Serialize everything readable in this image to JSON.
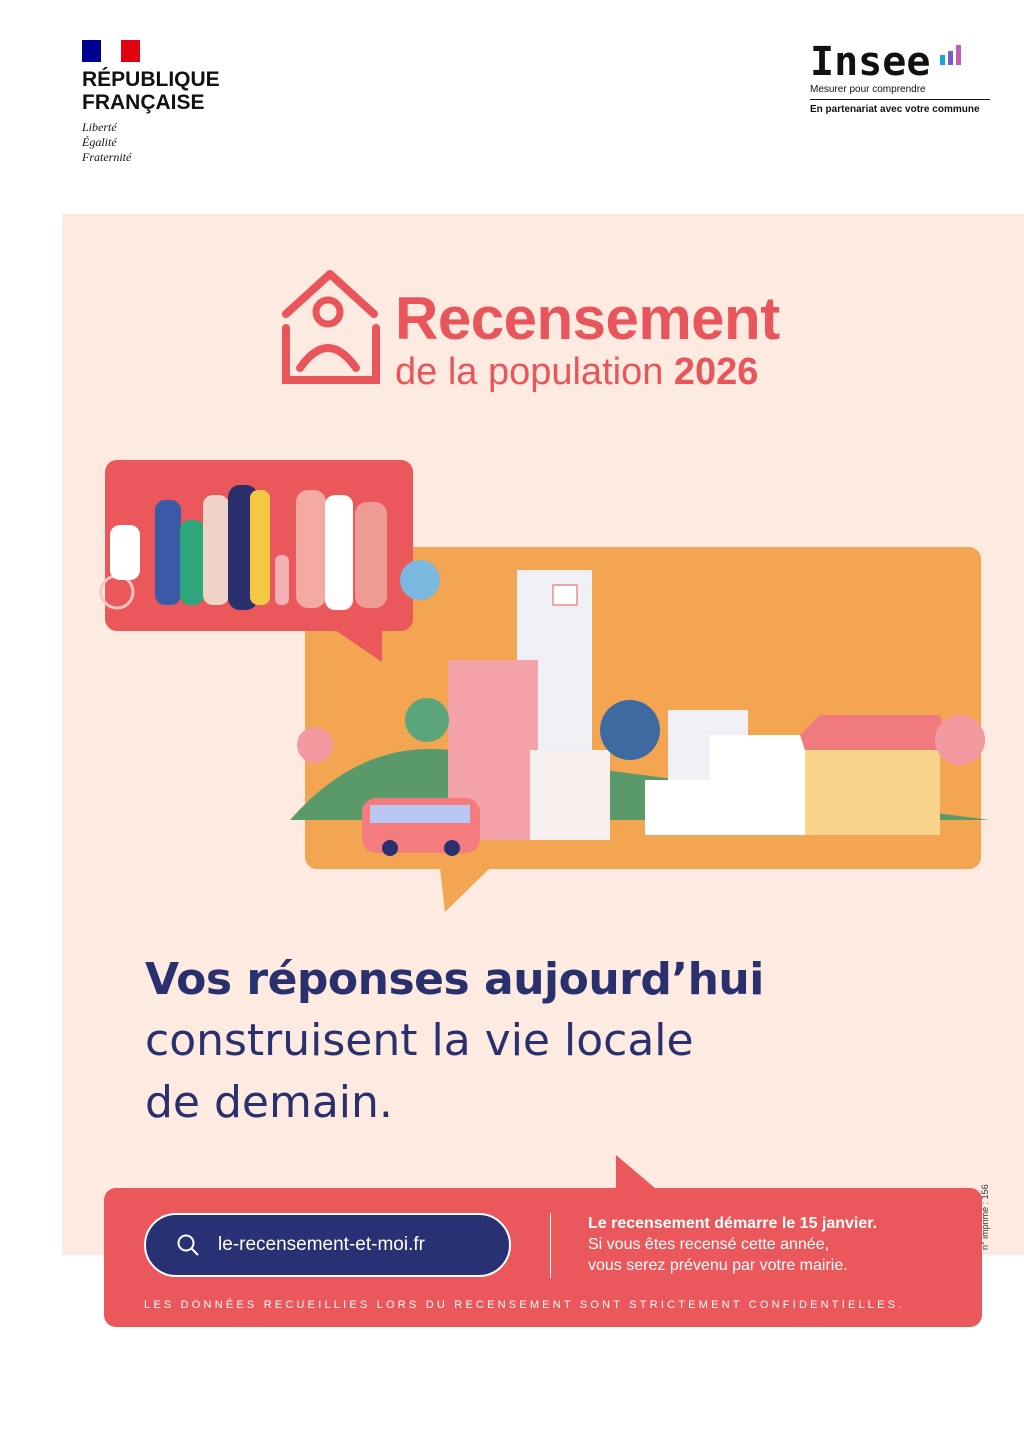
{
  "header": {
    "republique": {
      "line1": "RÉPUBLIQUE",
      "line2": "FRANÇAISE",
      "motto": [
        "Liberté",
        "Égalité",
        "Fraternité"
      ],
      "flag_colors": [
        "#000091",
        "#ffffff",
        "#e1000f"
      ]
    },
    "insee": {
      "brand": "Insee",
      "tagline": "Mesurer pour comprendre",
      "partner": "En partenariat avec votre commune"
    }
  },
  "title": {
    "line1": "Recensement",
    "line2": "de la population",
    "year": "2026",
    "icon": "house-person-icon"
  },
  "headline": {
    "bold": "Vos réponses aujourd’hui",
    "line2": "construisent la vie locale",
    "line3": "de demain."
  },
  "cta": {
    "website": "le-recensement-et-moi.fr",
    "search_icon": "search-icon",
    "info_bold": "Le recensement démarre le 15 janvier.",
    "info_line2": "Si vous êtes recensé cette année,",
    "info_line3": "vous serez prévenu par votre mairie.",
    "confidential": "LES DONNÉES RECUEILLIES LORS DU RECENSEMENT SONT STRICTEMENT CONFIDENTIELLES."
  },
  "print_number": "n° imprimé : 156",
  "colors": {
    "accent": "#e8565b",
    "navy": "#283173",
    "orange": "#f3a552",
    "cream": "#fdebe1"
  }
}
